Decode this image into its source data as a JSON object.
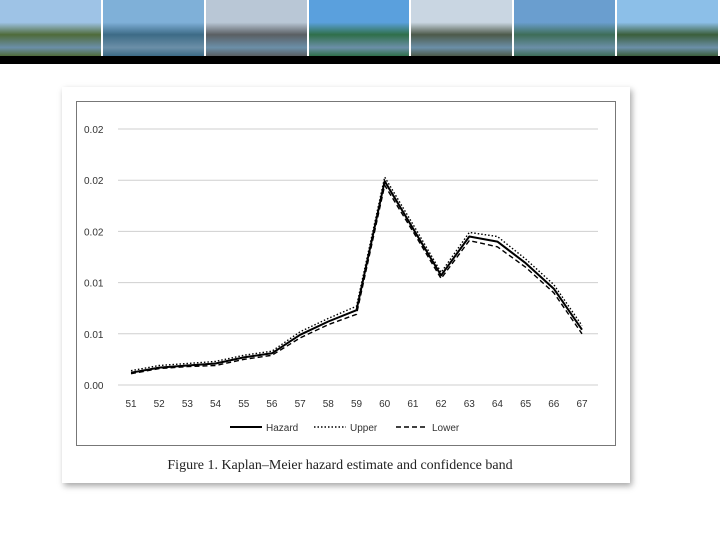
{
  "banner": {
    "photos": [
      {
        "name": "hillside-town",
        "sky": "#9ec3e6",
        "land": "#4f6b3a"
      },
      {
        "name": "lake-city",
        "sky": "#7fb0d8",
        "land": "#3d6b86"
      },
      {
        "name": "lakeside-promenade",
        "sky": "#b9c7d6",
        "land": "#5a5f63"
      },
      {
        "name": "lake-mountain",
        "sky": "#5aa0dd",
        "land": "#2f6f4a"
      },
      {
        "name": "aerial-lake",
        "sky": "#c9d6e2",
        "land": "#4d5a4a"
      },
      {
        "name": "lake-clouds",
        "sky": "#6a9ecf",
        "land": "#3e6d58"
      },
      {
        "name": "promenade-trees",
        "sky": "#8cbfe8",
        "land": "#3b5f3c"
      }
    ]
  },
  "caption": "Figure 1.  Kaplan–Meier hazard estimate and confidence band",
  "chart_data": {
    "type": "line",
    "x": [
      51,
      52,
      53,
      54,
      55,
      56,
      57,
      58,
      59,
      60,
      61,
      62,
      63,
      64,
      65,
      66,
      67
    ],
    "xticklabels": [
      "51",
      "52",
      "53",
      "54",
      "55",
      "56",
      "57",
      "58",
      "59",
      "60",
      "61",
      "62",
      "63",
      "64",
      "65",
      "66",
      "67"
    ],
    "yticks": [
      0.0,
      0.005,
      0.01,
      0.015,
      0.02,
      0.025
    ],
    "yticklabels": [
      "0.00",
      "0.01",
      "0.01",
      "0.02",
      "0.02",
      "0.02"
    ],
    "ylim": [
      0,
      0.025
    ],
    "grid": true,
    "legend_position": "bottom",
    "series": [
      {
        "name": "Hazard",
        "style": "solid",
        "color": "#000000",
        "values": [
          0.0012,
          0.0017,
          0.0019,
          0.0021,
          0.0027,
          0.0031,
          0.0049,
          0.0062,
          0.0073,
          0.0199,
          0.0153,
          0.0107,
          0.0145,
          0.014,
          0.0119,
          0.0094,
          0.0054
        ]
      },
      {
        "name": "Upper",
        "style": "dotted",
        "color": "#000000",
        "values": [
          0.0014,
          0.0019,
          0.0021,
          0.0023,
          0.0029,
          0.0033,
          0.0052,
          0.0065,
          0.0077,
          0.0203,
          0.0157,
          0.011,
          0.0149,
          0.0145,
          0.0123,
          0.0098,
          0.0058
        ]
      },
      {
        "name": "Lower",
        "style": "dashed",
        "color": "#000000",
        "values": [
          0.0011,
          0.0016,
          0.0018,
          0.0019,
          0.0025,
          0.0029,
          0.0046,
          0.0059,
          0.0069,
          0.0195,
          0.015,
          0.0104,
          0.0141,
          0.0135,
          0.0115,
          0.009,
          0.005
        ]
      }
    ]
  }
}
